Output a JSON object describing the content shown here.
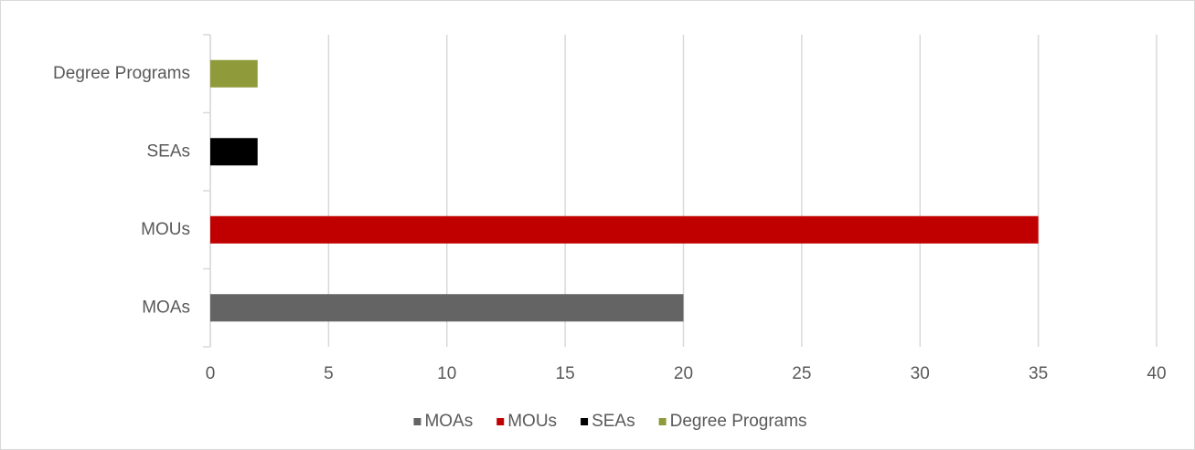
{
  "chart_data": {
    "type": "bar",
    "orientation": "horizontal",
    "categories": [
      "MOAs",
      "MOUs",
      "SEAs",
      "Degree Programs"
    ],
    "series": [
      {
        "name": "MOAs",
        "color": "#646464",
        "values": [
          20,
          null,
          null,
          null
        ]
      },
      {
        "name": "MOUs",
        "color": "#c00000",
        "values": [
          null,
          35,
          null,
          null
        ]
      },
      {
        "name": "SEAs",
        "color": "#000000",
        "values": [
          null,
          null,
          2,
          null
        ]
      },
      {
        "name": "Degree Programs",
        "color": "#8f9a3b",
        "values": [
          null,
          null,
          null,
          2
        ]
      }
    ],
    "xlim": [
      0,
      40
    ],
    "xticks": [
      0,
      5,
      10,
      15,
      20,
      25,
      30,
      35,
      40
    ],
    "grid": true,
    "legend": "bottom"
  }
}
